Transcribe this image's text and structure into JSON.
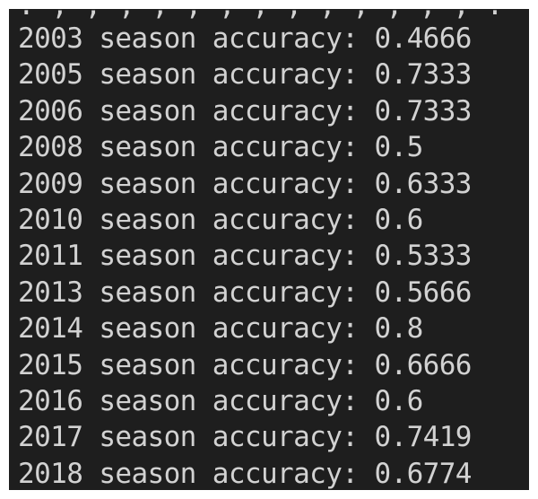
{
  "terminal": {
    "lines": [
      {
        "year": "2003",
        "text": "season accuracy:",
        "value": "0.4666"
      },
      {
        "year": "2005",
        "text": "season accuracy:",
        "value": "0.7333"
      },
      {
        "year": "2006",
        "text": "season accuracy:",
        "value": "0.7333"
      },
      {
        "year": "2008",
        "text": "season accuracy:",
        "value": "0.5"
      },
      {
        "year": "2009",
        "text": "season accuracy:",
        "value": "0.6333"
      },
      {
        "year": "2010",
        "text": "season accuracy:",
        "value": "0.6"
      },
      {
        "year": "2011",
        "text": "season accuracy:",
        "value": "0.5333"
      },
      {
        "year": "2013",
        "text": "season accuracy:",
        "value": "0.5666"
      },
      {
        "year": "2014",
        "text": "season accuracy:",
        "value": "0.8"
      },
      {
        "year": "2015",
        "text": "season accuracy:",
        "value": "0.6666"
      },
      {
        "year": "2016",
        "text": "season accuracy:",
        "value": "0.6"
      },
      {
        "year": "2017",
        "text": "season accuracy:",
        "value": "0.7419"
      },
      {
        "year": "2018",
        "text": "season accuracy:",
        "value": "0.6774"
      }
    ],
    "colors": {
      "background": "#1e1e1e",
      "text": "#d2d2d2"
    }
  }
}
